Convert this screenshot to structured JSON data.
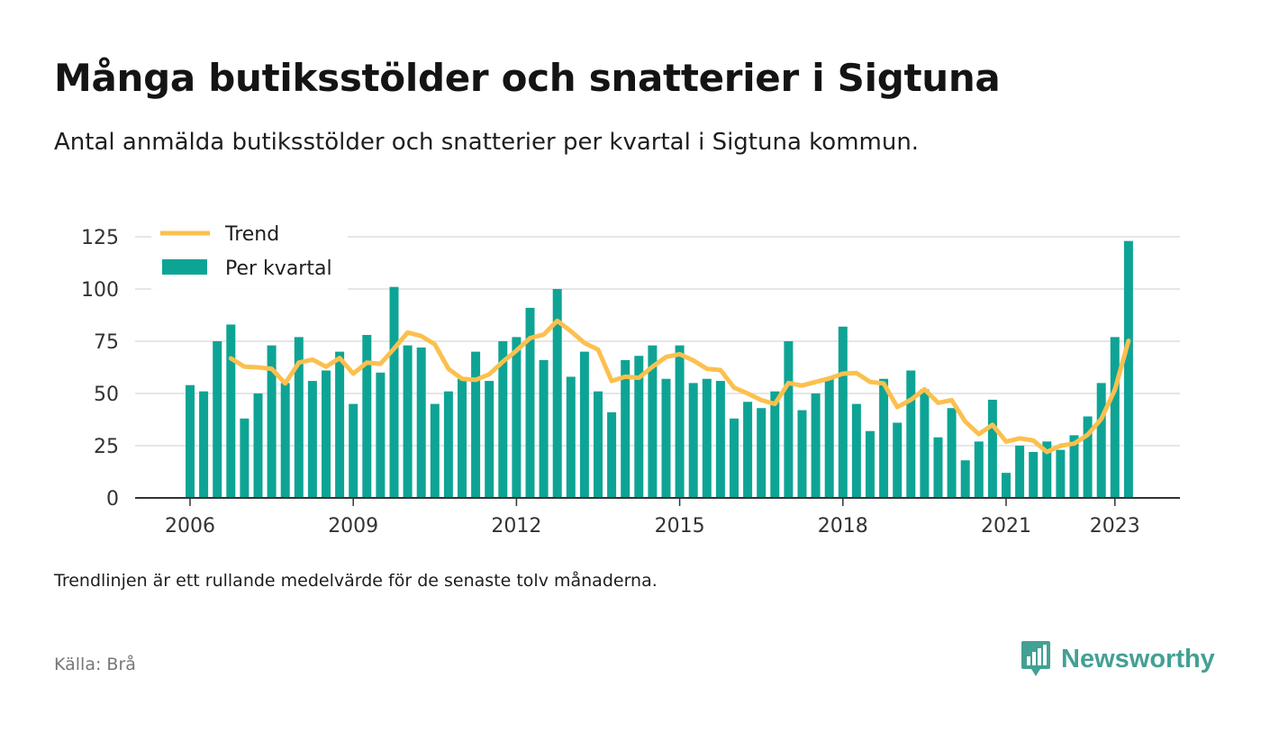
{
  "title": "Många butiksstölder och snatterier i Sigtuna",
  "subtitle": "Antal anmälda butiksstölder och snatterier per kvartal i Sigtuna kommun.",
  "note": "Trendlinjen är ett rullande medelvärde för de senaste tolv månaderna.",
  "source": "Källa: Brå",
  "brand": {
    "name": "Newsworthy",
    "icon": "newsworthy-chart-bubble-icon",
    "color": "#43a094"
  },
  "chart_data": {
    "type": "bar",
    "x_start": "2006 Q1",
    "x_ticks": [
      "2006",
      "2009",
      "2012",
      "2015",
      "2018",
      "2021",
      "2023"
    ],
    "y_ticks": [
      "0",
      "25",
      "50",
      "75",
      "100",
      "125"
    ],
    "ylim": [
      0,
      130
    ],
    "grid": true,
    "legend_position": "top-left",
    "series": [
      {
        "name": "Per kvartal",
        "type": "bar",
        "color": "#0ea495",
        "values": [
          54,
          51,
          75,
          83,
          38,
          50,
          73,
          55,
          77,
          56,
          61,
          70,
          45,
          78,
          60,
          101,
          73,
          72,
          45,
          51,
          57,
          70,
          56,
          75,
          77,
          91,
          66,
          100,
          58,
          70,
          51,
          41,
          66,
          68,
          73,
          57,
          73,
          55,
          57,
          56,
          38,
          46,
          43,
          51,
          75,
          42,
          50,
          57,
          82,
          45,
          32,
          57,
          36,
          61,
          52,
          29,
          43,
          18,
          27,
          47,
          12,
          25,
          22,
          27,
          23,
          30,
          39,
          55,
          77,
          123
        ]
      },
      {
        "name": "Trend",
        "type": "line",
        "color": "#fbc04e",
        "values": [
          null,
          null,
          null,
          66.8,
          62.8,
          62.5,
          61.8,
          54.8,
          64.8,
          66.2,
          62.8,
          67.0,
          59.5,
          64.8,
          64.2,
          71.5,
          79.2,
          77.5,
          73.5,
          61.8,
          57.0,
          56.5,
          59.2,
          65.2,
          70.5,
          76.5,
          78.2,
          84.8,
          79.8,
          74.2,
          71.0,
          56.0,
          58.0,
          57.5,
          62.8,
          67.5,
          68.8,
          65.8,
          61.8,
          61.2,
          52.8,
          50.0,
          46.8,
          45.0,
          55.0,
          53.8,
          55.5,
          57.2,
          59.5,
          59.8,
          55.5,
          54.8,
          43.5,
          47.0,
          52.0,
          45.5,
          46.8,
          36.5,
          30.5,
          35.0,
          27.0,
          28.5,
          27.5,
          22.0,
          25.0,
          26.0,
          30.2,
          37.8,
          51.8,
          75.2
        ]
      }
    ]
  }
}
